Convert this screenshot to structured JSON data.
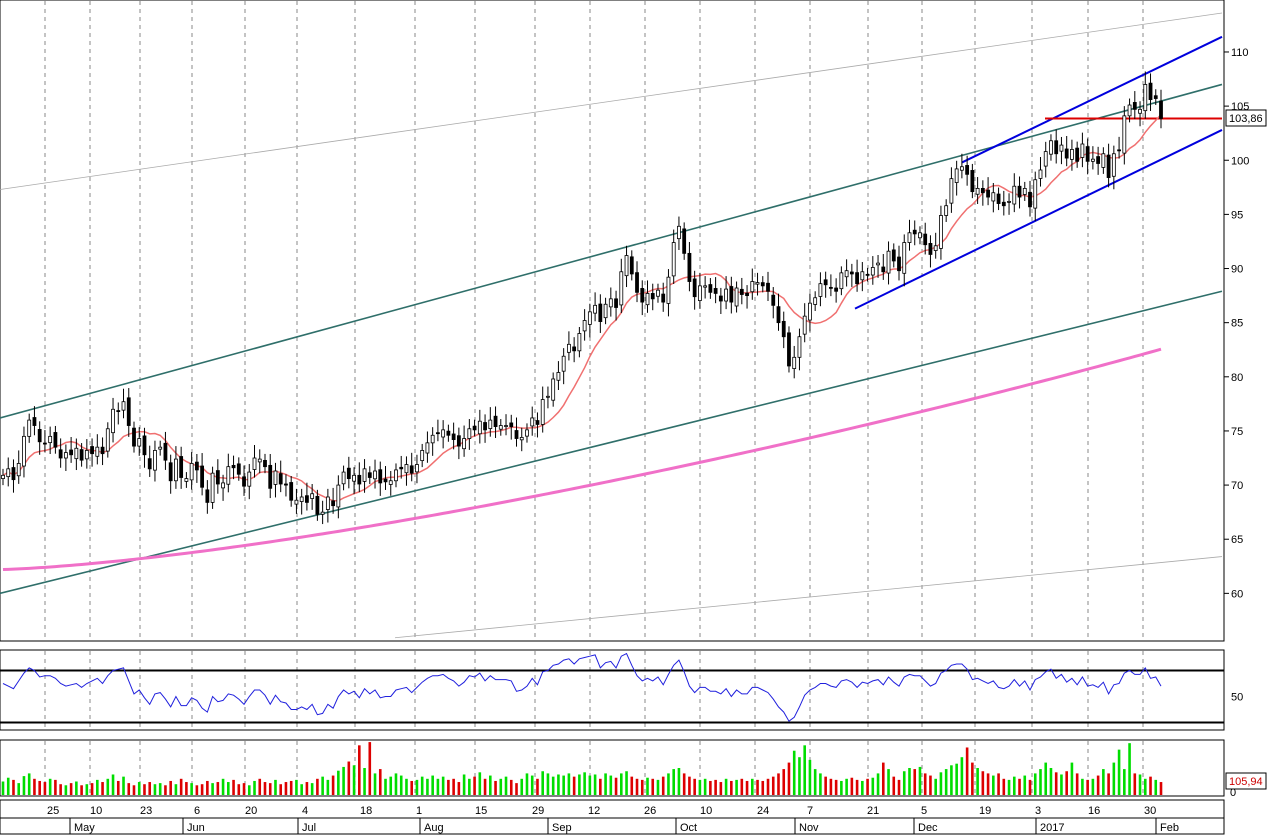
{
  "chart_data": {
    "type": "candlestick",
    "title": "",
    "price_panel": {
      "y_ticks": [
        110,
        105,
        100,
        95,
        90,
        85,
        80,
        75,
        70,
        65,
        60
      ],
      "ylim": [
        55.6,
        114.8
      ],
      "last_price_label": "103,86",
      "last_price": 103.86,
      "close": [
        70.9,
        71.5,
        70.5,
        72.0,
        74.5,
        76.0,
        75.5,
        74.0,
        73.8,
        74.5,
        73.5,
        72.5,
        73.0,
        72.8,
        73.4,
        72.3,
        73.2,
        72.9,
        73.5,
        72.9,
        75.2,
        77.0,
        76.8,
        77.7,
        75.5,
        73.6,
        74.3,
        72.8,
        71.5,
        73.2,
        73.5,
        72.3,
        70.4,
        72.4,
        70.7,
        70.6,
        72.0,
        71.4,
        69.8,
        68.4,
        71.1,
        70.1,
        70.2,
        71.7,
        71.6,
        71.0,
        69.9,
        71.2,
        72.5,
        72.4,
        71.7,
        69.7,
        71.3,
        70.1,
        70.0,
        68.6,
        68.6,
        68.9,
        68.4,
        69.2,
        67.3,
        67.5,
        68.9,
        68.1,
        70.0,
        71.2,
        70.6,
        70.9,
        70.1,
        71.5,
        70.7,
        71.3,
        70.2,
        70.3,
        70.4,
        71.4,
        71.5,
        71.9,
        71.1,
        71.9,
        73.2,
        73.9,
        74.6,
        74.8,
        75.1,
        74.6,
        74.2,
        73.6,
        74.3,
        75.2,
        75.1,
        75.9,
        75.1,
        76.0,
        75.4,
        75.5,
        75.5,
        75.4,
        74.3,
        74.4,
        75.1,
        76.2,
        75.6,
        77.9,
        78.2,
        79.8,
        80.4,
        81.9,
        83.0,
        82.4,
        84.0,
        85.2,
        86.0,
        86.6,
        85.1,
        86.7,
        87.2,
        86.4,
        89.7,
        91.2,
        89.5,
        87.8,
        86.9,
        87.7,
        87.2,
        88.0,
        86.9,
        89.2,
        92.4,
        93.9,
        91.4,
        88.8,
        87.4,
        88.4,
        88.4,
        87.8,
        87.7,
        87.0,
        88.1,
        86.9,
        88.2,
        87.6,
        87.5,
        88.8,
        88.7,
        88.4,
        87.9,
        86.6,
        85.0,
        83.7,
        81.0,
        81.8,
        83.7,
        85.6,
        86.8,
        87.3,
        88.6,
        88.5,
        88.2,
        87.9,
        89.6,
        89.8,
        89.5,
        88.6,
        89.7,
        89.4,
        90.1,
        90.5,
        89.7,
        91.6,
        90.7,
        89.8,
        92.4,
        93.3,
        93.2,
        93.3,
        92.2,
        91.3,
        92.1,
        94.9,
        95.8,
        98.3,
        99.2,
        99.4,
        98.7,
        97.1,
        97.4,
        97.0,
        96.6,
        97.0,
        96.0,
        95.8,
        96.2,
        97.6,
        96.6,
        97.4,
        95.7,
        98.2,
        99.1,
        100.8,
        101.8,
        100.6,
        101.4,
        100.2,
        101.0,
        99.9,
        101.5,
        99.9,
        100.1,
        99.7,
        100.6,
        98.4,
        100.6,
        100.9,
        104.1,
        105.1,
        104.7,
        104.7,
        107.0,
        105.6,
        105.7,
        103.86
      ]
    },
    "rsi_panel": {
      "y_ticks": [
        50
      ],
      "levels": [
        70,
        30
      ],
      "ylim": [
        25,
        85
      ],
      "values": [
        60,
        58,
        56,
        62,
        68,
        72,
        70,
        65,
        66,
        66,
        64,
        60,
        58,
        59,
        60,
        57,
        60,
        62,
        64,
        60,
        66,
        70,
        71,
        72,
        62,
        52,
        55,
        49,
        44,
        52,
        53,
        48,
        42,
        50,
        43,
        43,
        49,
        47,
        41,
        38,
        50,
        46,
        47,
        52,
        51,
        48,
        44,
        50,
        55,
        55,
        51,
        44,
        51,
        46,
        45,
        40,
        40,
        42,
        40,
        44,
        36,
        37,
        44,
        41,
        50,
        55,
        52,
        54,
        49,
        56,
        52,
        55,
        49,
        50,
        50,
        55,
        56,
        57,
        53,
        57,
        61,
        64,
        66,
        66,
        67,
        64,
        62,
        58,
        61,
        66,
        65,
        68,
        62,
        66,
        63,
        63,
        63,
        62,
        54,
        55,
        58,
        64,
        59,
        69,
        70,
        74,
        75,
        78,
        79,
        75,
        79,
        80,
        81,
        82,
        72,
        76,
        77,
        72,
        81,
        83,
        74,
        66,
        62,
        64,
        62,
        65,
        59,
        67,
        74,
        78,
        69,
        58,
        53,
        57,
        57,
        54,
        54,
        52,
        56,
        50,
        55,
        52,
        52,
        57,
        57,
        55,
        53,
        48,
        42,
        38,
        31,
        34,
        42,
        51,
        55,
        57,
        60,
        60,
        58,
        57,
        62,
        63,
        61,
        57,
        61,
        60,
        62,
        63,
        59,
        65,
        61,
        58,
        65,
        67,
        66,
        66,
        62,
        58,
        60,
        68,
        70,
        74,
        75,
        75,
        71,
        63,
        64,
        62,
        60,
        62,
        57,
        56,
        58,
        63,
        58,
        62,
        55,
        63,
        65,
        69,
        71,
        64,
        67,
        61,
        64,
        59,
        65,
        58,
        59,
        57,
        61,
        52,
        59,
        60,
        68,
        70,
        67,
        67,
        72,
        64,
        65,
        58
      ]
    },
    "volume_panel": {
      "y_ticks": [
        "0"
      ],
      "last_volume_label": "105,94",
      "ylim": [
        0,
        100
      ],
      "values": [
        25,
        32,
        28,
        22,
        35,
        40,
        30,
        26,
        24,
        30,
        28,
        20,
        18,
        22,
        25,
        18,
        20,
        22,
        28,
        24,
        30,
        38,
        26,
        34,
        22,
        18,
        24,
        20,
        24,
        20,
        22,
        18,
        26,
        20,
        30,
        24,
        22,
        18,
        20,
        26,
        22,
        24,
        30,
        24,
        28,
        20,
        22,
        18,
        26,
        30,
        24,
        22,
        28,
        20,
        24,
        26,
        28,
        20,
        24,
        22,
        30,
        34,
        28,
        36,
        45,
        52,
        62,
        55,
        92,
        50,
        98,
        40,
        48,
        30,
        34,
        40,
        36,
        30,
        26,
        28,
        34,
        30,
        36,
        30,
        34,
        28,
        30,
        24,
        38,
        30,
        34,
        42,
        30,
        36,
        26,
        30,
        34,
        28,
        22,
        30,
        40,
        36,
        30,
        44,
        40,
        34,
        38,
        36,
        40,
        34,
        38,
        42,
        36,
        38,
        30,
        40,
        36,
        32,
        40,
        44,
        34,
        30,
        28,
        32,
        30,
        28,
        34,
        40,
        48,
        50,
        40,
        34,
        30,
        28,
        30,
        26,
        28,
        24,
        30,
        26,
        28,
        30,
        26,
        30,
        28,
        26,
        30,
        34,
        40,
        48,
        60,
        82,
        70,
        92,
        65,
        48,
        40,
        34,
        30,
        28,
        26,
        30,
        32,
        28,
        26,
        30,
        32,
        40,
        60,
        48,
        34,
        28,
        44,
        50,
        48,
        52,
        40,
        36,
        30,
        42,
        48,
        55,
        58,
        70,
        88,
        60,
        50,
        44,
        40,
        36,
        40,
        30,
        28,
        34,
        30,
        36,
        28,
        40,
        48,
        60,
        50,
        42,
        38,
        44,
        60,
        40,
        30,
        28,
        30,
        36,
        48,
        40,
        60,
        84,
        48,
        96,
        40,
        38,
        30,
        34,
        28,
        24
      ]
    },
    "x_axis": {
      "day_labels": [
        "25",
        "10",
        "23",
        "6",
        "20",
        "4",
        "18",
        "1",
        "15",
        "29",
        "12",
        "26",
        "10",
        "24",
        "7",
        "21",
        "5",
        "19",
        "3",
        "16",
        "30"
      ],
      "month_labels": [
        "May",
        "Jun",
        "Jul",
        "Aug",
        "Sep",
        "Oct",
        "Nov",
        "Dec",
        "2017",
        "Feb"
      ]
    },
    "colors": {
      "up_volume": "#00dd00",
      "down_volume": "#dd0000",
      "channel_outer": "#2f6f6a",
      "channel_inner": "#0000dd",
      "sma_short": "#f07070",
      "sma_long": "#f070c8",
      "support_line": "#dd0000",
      "rsi_line": "#2020dd",
      "price_label_volume": "#cc0000"
    }
  }
}
